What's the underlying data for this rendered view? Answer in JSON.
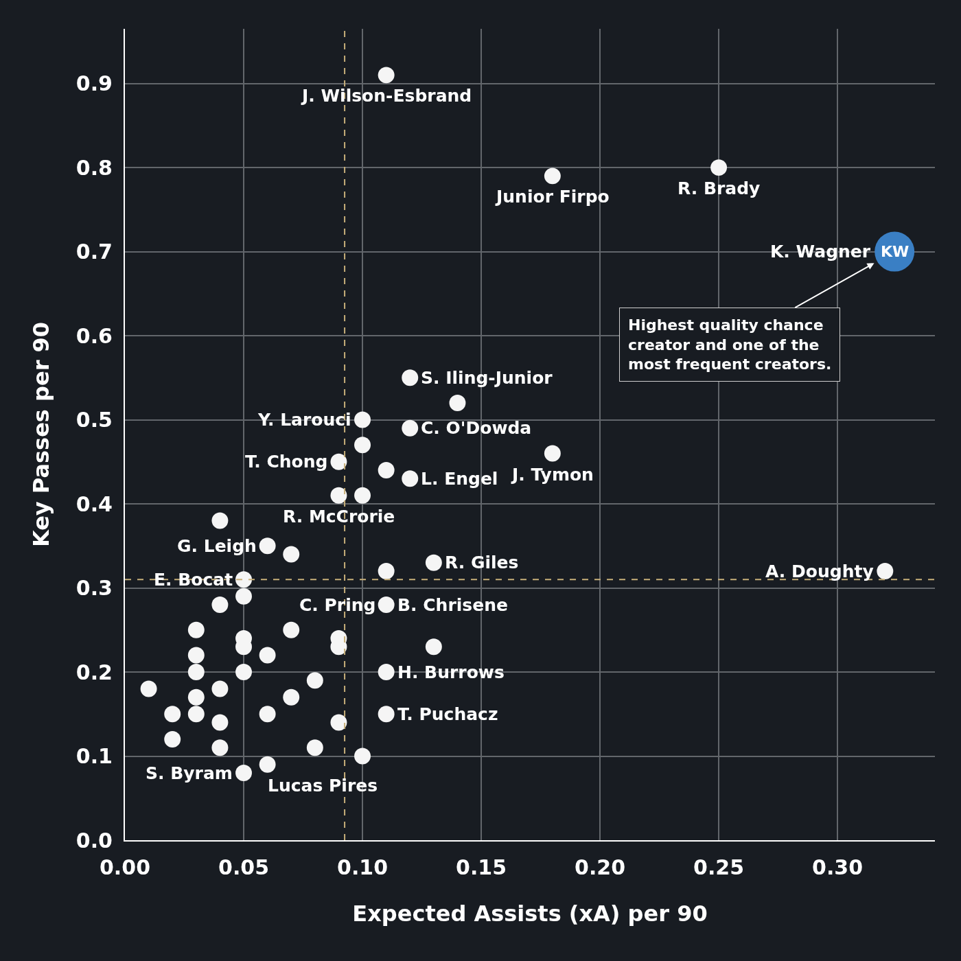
{
  "chart_data": {
    "type": "scatter",
    "xlabel": "Expected Assists (xA) per 90",
    "ylabel": "Key Passes per 90",
    "x": [
      0.11,
      0.18,
      0.25,
      0.324,
      0.12,
      0.14,
      0.1,
      0.12,
      0.1,
      0.18,
      0.09,
      0.11,
      0.12,
      0.09,
      0.1,
      0.04,
      0.06,
      0.07,
      0.13,
      0.11,
      0.05,
      0.32,
      0.05,
      0.04,
      0.11,
      0.03,
      0.07,
      0.05,
      0.09,
      0.13,
      0.05,
      0.09,
      0.03,
      0.06,
      0.03,
      0.05,
      0.11,
      0.08,
      0.01,
      0.04,
      0.03,
      0.07,
      0.02,
      0.03,
      0.06,
      0.11,
      0.04,
      0.09,
      0.02,
      0.04,
      0.08,
      0.1,
      0.06,
      0.05
    ],
    "values": [
      0.91,
      0.79,
      0.8,
      0.7,
      0.55,
      0.52,
      0.5,
      0.49,
      0.47,
      0.46,
      0.45,
      0.44,
      0.43,
      0.41,
      0.41,
      0.38,
      0.35,
      0.34,
      0.33,
      0.32,
      0.31,
      0.32,
      0.29,
      0.28,
      0.28,
      0.25,
      0.25,
      0.24,
      0.24,
      0.23,
      0.23,
      0.23,
      0.22,
      0.22,
      0.2,
      0.2,
      0.2,
      0.19,
      0.18,
      0.18,
      0.17,
      0.17,
      0.15,
      0.15,
      0.15,
      0.15,
      0.14,
      0.14,
      0.12,
      0.11,
      0.11,
      0.1,
      0.09,
      0.08
    ],
    "colors": [
      "#f5f5f5",
      "#f5f5f5",
      "#f5f5f5",
      "#3a7fc4",
      "#f5f5f5",
      "#f5f5f5",
      "#f5f5f5",
      "#f5f5f5",
      "#f5f5f5",
      "#f5f5f5",
      "#f5f5f5",
      "#f5f5f5",
      "#f5f5f5",
      "#f5f5f5",
      "#f5f5f5",
      "#f5f5f5",
      "#f5f5f5",
      "#f5f5f5",
      "#f5f5f5",
      "#f5f5f5",
      "#f5f5f5",
      "#f5f5f5",
      "#f5f5f5",
      "#f5f5f5",
      "#f5f5f5",
      "#f5f5f5",
      "#f5f5f5",
      "#f5f5f5",
      "#f5f5f5",
      "#f5f5f5",
      "#f5f5f5",
      "#f5f5f5",
      "#f5f5f5",
      "#f5f5f5",
      "#f5f5f5",
      "#f5f5f5",
      "#f5f5f5",
      "#f5f5f5",
      "#f5f5f5",
      "#f5f5f5",
      "#f5f5f5",
      "#f5f5f5",
      "#f5f5f5",
      "#f5f5f5",
      "#f5f5f5",
      "#f5f5f5",
      "#f5f5f5",
      "#f5f5f5",
      "#f5f5f5",
      "#f5f5f5",
      "#f5f5f5",
      "#f5f5f5",
      "#f5f5f5",
      "#f5f5f5"
    ],
    "sizes": [
      0.17,
      0.17,
      0.17,
      1,
      0.17,
      0.17,
      0.17,
      0.17,
      0.17,
      0.17,
      0.17,
      0.17,
      0.17,
      0.17,
      0.17,
      0.17,
      0.17,
      0.17,
      0.17,
      0.17,
      0.17,
      0.17,
      0.17,
      0.17,
      0.17,
      0.17,
      0.17,
      0.17,
      0.17,
      0.17,
      0.17,
      0.17,
      0.17,
      0.17,
      0.17,
      0.17,
      0.17,
      0.17,
      0.17,
      0.17,
      0.17,
      0.17,
      0.17,
      0.17,
      0.17,
      0.17,
      0.17,
      0.17,
      0.17,
      0.17,
      0.17,
      0.17,
      0.17,
      0.17
    ],
    "marker": "circle",
    "xlim": [
      0,
      0.341
    ],
    "xticks": [
      {
        "value": 0,
        "label": "0.00"
      },
      0.05,
      {
        "value": 0.1,
        "label": "0.10"
      },
      0.15,
      {
        "value": 0.2,
        "label": "0.20"
      },
      0.25,
      {
        "value": 0.3,
        "label": "0.30"
      }
    ],
    "ylim": [
      0,
      0.965
    ],
    "yticks": [
      {
        "value": 0,
        "label": "0.0"
      },
      0.1,
      0.2,
      0.3,
      0.4,
      0.5,
      0.6,
      0.7,
      0.8,
      0.9
    ],
    "grid": true,
    "ref_lines": [
      {
        "axis": "x",
        "value": 0.0925,
        "color": "#c8b07a",
        "line_style": "dashed"
      },
      {
        "axis": "y",
        "value": 0.31,
        "color": "#c8b07a",
        "line_style": "dashed"
      }
    ],
    "annotations": [
      {
        "text": "J. Wilson-Esbrand",
        "x": 0.11,
        "y": 0.91
      },
      {
        "text": "Junior Firpo",
        "x": 0.18,
        "y": 0.79
      },
      {
        "text": "R. Brady",
        "x": 0.25,
        "y": 0.8
      },
      {
        "text": "K. Wagner",
        "x": 0.324,
        "y": 0.7
      },
      {
        "text": "KW",
        "x": 0.324,
        "y": 0.7
      },
      {
        "text": "Highest quality chance creator and one of the most frequent creators.",
        "x": 0.324,
        "y": 0.7
      },
      {
        "text": "S. Iling-Junior",
        "x": 0.12,
        "y": 0.55
      },
      {
        "text": "Y. Larouci",
        "x": 0.1,
        "y": 0.5
      },
      {
        "text": "C. O'Dowda",
        "x": 0.12,
        "y": 0.49
      },
      {
        "text": "T. Chong",
        "x": 0.09,
        "y": 0.45
      },
      {
        "text": "L. Engel",
        "x": 0.12,
        "y": 0.43
      },
      {
        "text": "J. Tymon",
        "x": 0.18,
        "y": 0.46
      },
      {
        "text": "R. McCrorie",
        "x": 0.09,
        "y": 0.41
      },
      {
        "text": "G. Leigh",
        "x": 0.06,
        "y": 0.35
      },
      {
        "text": "R. Giles",
        "x": 0.13,
        "y": 0.33
      },
      {
        "text": "E. Bocat",
        "x": 0.05,
        "y": 0.31
      },
      {
        "text": "A. Doughty",
        "x": 0.32,
        "y": 0.32
      },
      {
        "text": "C. Pring",
        "x": 0.11,
        "y": 0.28
      },
      {
        "text": "B. Chrisene",
        "x": 0.11,
        "y": 0.28
      },
      {
        "text": "H. Burrows",
        "x": 0.11,
        "y": 0.2
      },
      {
        "text": "T. Puchacz",
        "x": 0.11,
        "y": 0.15
      },
      {
        "text": "S. Byram",
        "x": 0.05,
        "y": 0.08
      },
      {
        "text": "Lucas Pires",
        "x": 0.06,
        "y": 0.09
      }
    ]
  }
}
